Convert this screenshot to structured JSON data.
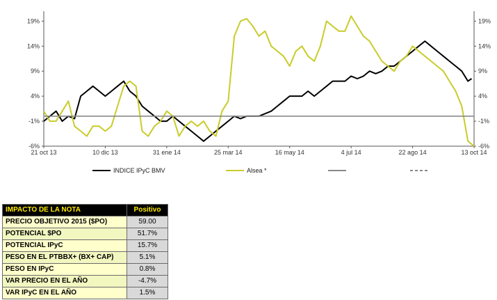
{
  "chart_data": {
    "type": "line",
    "ylim": [
      -6,
      21
    ],
    "y_ticks": [
      "-6%",
      "-1%",
      "4%",
      "9%",
      "14%",
      "19%"
    ],
    "y_tick_values": [
      -6,
      -1,
      4,
      9,
      14,
      19
    ],
    "x_ticks": [
      "21 oct 13",
      "10 dic 13",
      "31 ene 14",
      "25 mar 14",
      "16 may 14",
      "4 jul 14",
      "22 ago 14",
      "13 oct 14"
    ],
    "x_tick_positions": [
      0,
      50,
      100,
      150,
      200,
      250,
      300,
      350
    ],
    "xlim": [
      0,
      350
    ],
    "grid": false,
    "legend_position": "bottom",
    "series": [
      {
        "name": "INDICE IPyC BMV",
        "color": "#000000",
        "points": [
          [
            0,
            -1
          ],
          [
            5,
            0
          ],
          [
            10,
            1
          ],
          [
            15,
            -1
          ],
          [
            20,
            0
          ],
          [
            25,
            -0.5
          ],
          [
            30,
            4
          ],
          [
            35,
            5
          ],
          [
            40,
            6
          ],
          [
            45,
            5
          ],
          [
            50,
            4
          ],
          [
            55,
            5
          ],
          [
            60,
            6
          ],
          [
            65,
            7
          ],
          [
            70,
            5
          ],
          [
            75,
            4
          ],
          [
            80,
            2
          ],
          [
            85,
            1
          ],
          [
            90,
            0
          ],
          [
            95,
            -1
          ],
          [
            100,
            -1
          ],
          [
            105,
            0
          ],
          [
            110,
            -1
          ],
          [
            115,
            -2
          ],
          [
            120,
            -3
          ],
          [
            125,
            -4
          ],
          [
            130,
            -5
          ],
          [
            135,
            -4
          ],
          [
            140,
            -3
          ],
          [
            145,
            -2
          ],
          [
            150,
            -1
          ],
          [
            155,
            0
          ],
          [
            160,
            -0.5
          ],
          [
            165,
            0
          ],
          [
            170,
            0
          ],
          [
            175,
            0
          ],
          [
            180,
            0.5
          ],
          [
            185,
            1
          ],
          [
            190,
            2
          ],
          [
            195,
            3
          ],
          [
            200,
            4
          ],
          [
            205,
            4
          ],
          [
            210,
            4
          ],
          [
            215,
            5
          ],
          [
            220,
            4
          ],
          [
            225,
            5
          ],
          [
            230,
            6
          ],
          [
            235,
            7
          ],
          [
            240,
            7
          ],
          [
            245,
            7
          ],
          [
            250,
            8
          ],
          [
            255,
            7.5
          ],
          [
            260,
            8
          ],
          [
            265,
            9
          ],
          [
            270,
            8.5
          ],
          [
            275,
            9
          ],
          [
            280,
            10
          ],
          [
            285,
            10
          ],
          [
            290,
            11
          ],
          [
            295,
            12
          ],
          [
            300,
            13
          ],
          [
            305,
            14
          ],
          [
            310,
            15
          ],
          [
            315,
            14
          ],
          [
            320,
            13
          ],
          [
            325,
            12
          ],
          [
            330,
            11
          ],
          [
            335,
            10
          ],
          [
            340,
            9
          ],
          [
            345,
            7
          ],
          [
            348,
            7.5
          ]
        ]
      },
      {
        "name": "Alsea *",
        "color": "#c8cc2a",
        "points": [
          [
            0,
            1
          ],
          [
            5,
            -1
          ],
          [
            10,
            -1
          ],
          [
            15,
            1
          ],
          [
            20,
            3
          ],
          [
            25,
            -2
          ],
          [
            30,
            -3
          ],
          [
            35,
            -4
          ],
          [
            40,
            -2
          ],
          [
            45,
            -2
          ],
          [
            50,
            -3
          ],
          [
            55,
            -2
          ],
          [
            60,
            2
          ],
          [
            65,
            6
          ],
          [
            70,
            7
          ],
          [
            75,
            6
          ],
          [
            80,
            -3
          ],
          [
            85,
            -4
          ],
          [
            90,
            -2
          ],
          [
            95,
            -1
          ],
          [
            100,
            1
          ],
          [
            105,
            0
          ],
          [
            110,
            -4
          ],
          [
            115,
            -2
          ],
          [
            120,
            -1
          ],
          [
            125,
            -2
          ],
          [
            130,
            -1
          ],
          [
            135,
            -3
          ],
          [
            140,
            -4
          ],
          [
            145,
            1
          ],
          [
            150,
            3
          ],
          [
            155,
            16
          ],
          [
            160,
            19
          ],
          [
            165,
            19.5
          ],
          [
            170,
            18
          ],
          [
            175,
            16
          ],
          [
            180,
            17
          ],
          [
            185,
            14
          ],
          [
            190,
            13
          ],
          [
            195,
            12
          ],
          [
            200,
            10
          ],
          [
            205,
            13
          ],
          [
            210,
            14
          ],
          [
            215,
            12
          ],
          [
            220,
            11
          ],
          [
            225,
            14
          ],
          [
            230,
            19
          ],
          [
            235,
            18
          ],
          [
            240,
            17
          ],
          [
            245,
            17
          ],
          [
            250,
            20
          ],
          [
            255,
            18
          ],
          [
            260,
            16
          ],
          [
            265,
            15
          ],
          [
            270,
            13
          ],
          [
            275,
            11
          ],
          [
            280,
            10
          ],
          [
            285,
            9
          ],
          [
            290,
            11
          ],
          [
            295,
            12
          ],
          [
            300,
            14
          ],
          [
            305,
            13
          ],
          [
            310,
            12
          ],
          [
            315,
            11
          ],
          [
            320,
            10
          ],
          [
            325,
            9
          ],
          [
            330,
            7
          ],
          [
            335,
            5
          ],
          [
            340,
            2
          ],
          [
            345,
            -5
          ],
          [
            350,
            -6
          ]
        ]
      },
      {
        "name": "",
        "color": "#888888",
        "points": [
          [
            0,
            0
          ],
          [
            350,
            0
          ]
        ]
      },
      {
        "name": "",
        "color": "#888888",
        "dashed": true,
        "points": []
      }
    ]
  },
  "impact_table": {
    "header_label": "IMPACTO DE LA NOTA",
    "header_value": "Positivo",
    "rows": [
      {
        "label": "PRECIO OBJETIVO 2015 ($PO)",
        "value": "59.00"
      },
      {
        "label": "POTENCIAL $PO",
        "value": "51.7%"
      },
      {
        "label": "POTENCIAL IPyC",
        "value": "15.7%"
      },
      {
        "label": "PESO EN EL PTBBX+ (BX+ CAP)",
        "value": "5.1%"
      },
      {
        "label": "PESO EN IPyC",
        "value": "0.8%"
      },
      {
        "label": "VAR PRECIO EN EL AÑO",
        "value": "-4.7%"
      },
      {
        "label": "VAR IPyC EN EL AÑO",
        "value": "1.5%"
      }
    ]
  }
}
